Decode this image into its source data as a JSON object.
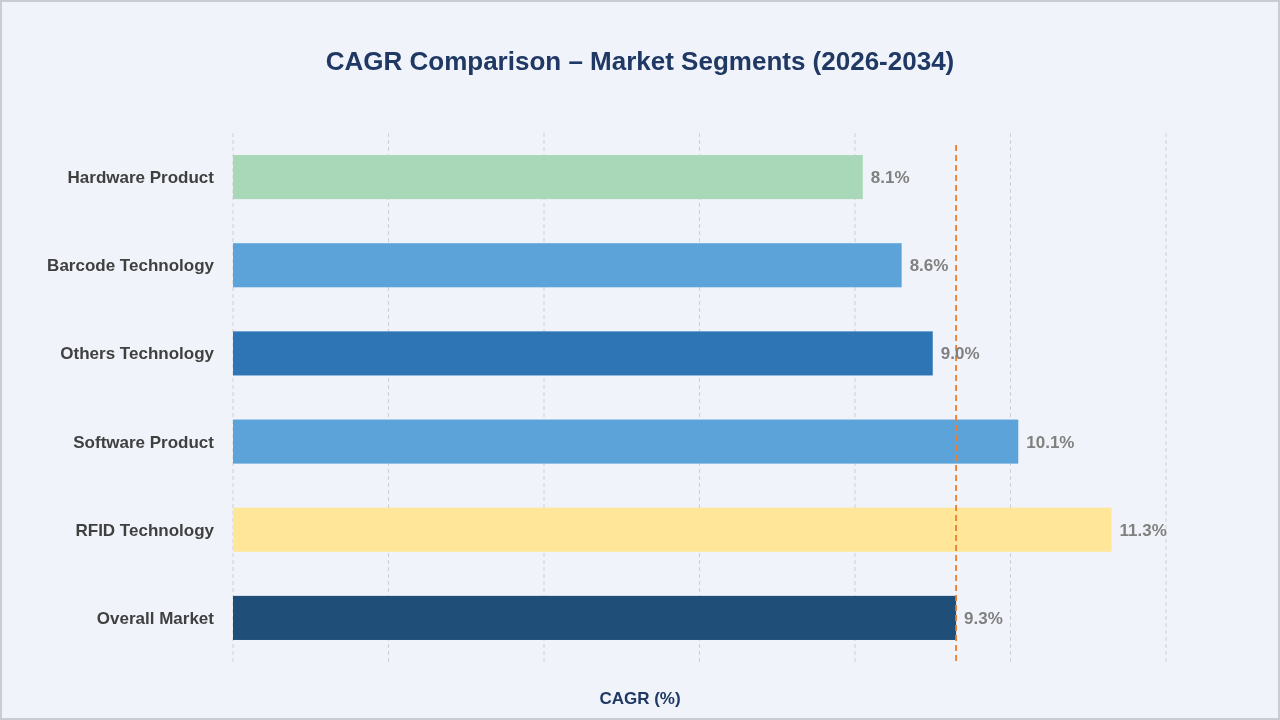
{
  "chart_data": {
    "type": "bar",
    "orientation": "horizontal",
    "title": "CAGR Comparison – Market Segments (2026-2034)",
    "xlabel": "CAGR (%)",
    "categories": [
      "Hardware Product",
      "Barcode Technology",
      "Others Technology",
      "Software Product",
      "RFID Technology",
      "Overall Market"
    ],
    "values": [
      8.1,
      8.6,
      9.0,
      10.1,
      11.3,
      9.3
    ],
    "colors": [
      "#a9d8b8",
      "#5ba3d9",
      "#2e75b6",
      "#5ba3d9",
      "#ffe699",
      "#1f4e79"
    ],
    "data_labels": true,
    "value_labels": [
      "8.1%",
      "8.6%",
      "9.0%",
      "10.1%",
      "11.3%",
      "9.3%"
    ],
    "xlim": [
      0,
      12
    ],
    "xticks": [
      {
        "value": 0,
        "label": null
      },
      {
        "value": 2,
        "label": null
      },
      {
        "value": 4,
        "label": null
      },
      {
        "value": 6,
        "label": null
      },
      {
        "value": 8,
        "label": null
      },
      {
        "value": 10,
        "label": null
      },
      {
        "value": 12,
        "label": null
      }
    ],
    "tick_labels": "y",
    "grid": "x",
    "ref_lines": [
      {
        "axis": "x",
        "value": 9.3,
        "color": "#ed7d31",
        "line_style": "dashed"
      }
    ]
  }
}
